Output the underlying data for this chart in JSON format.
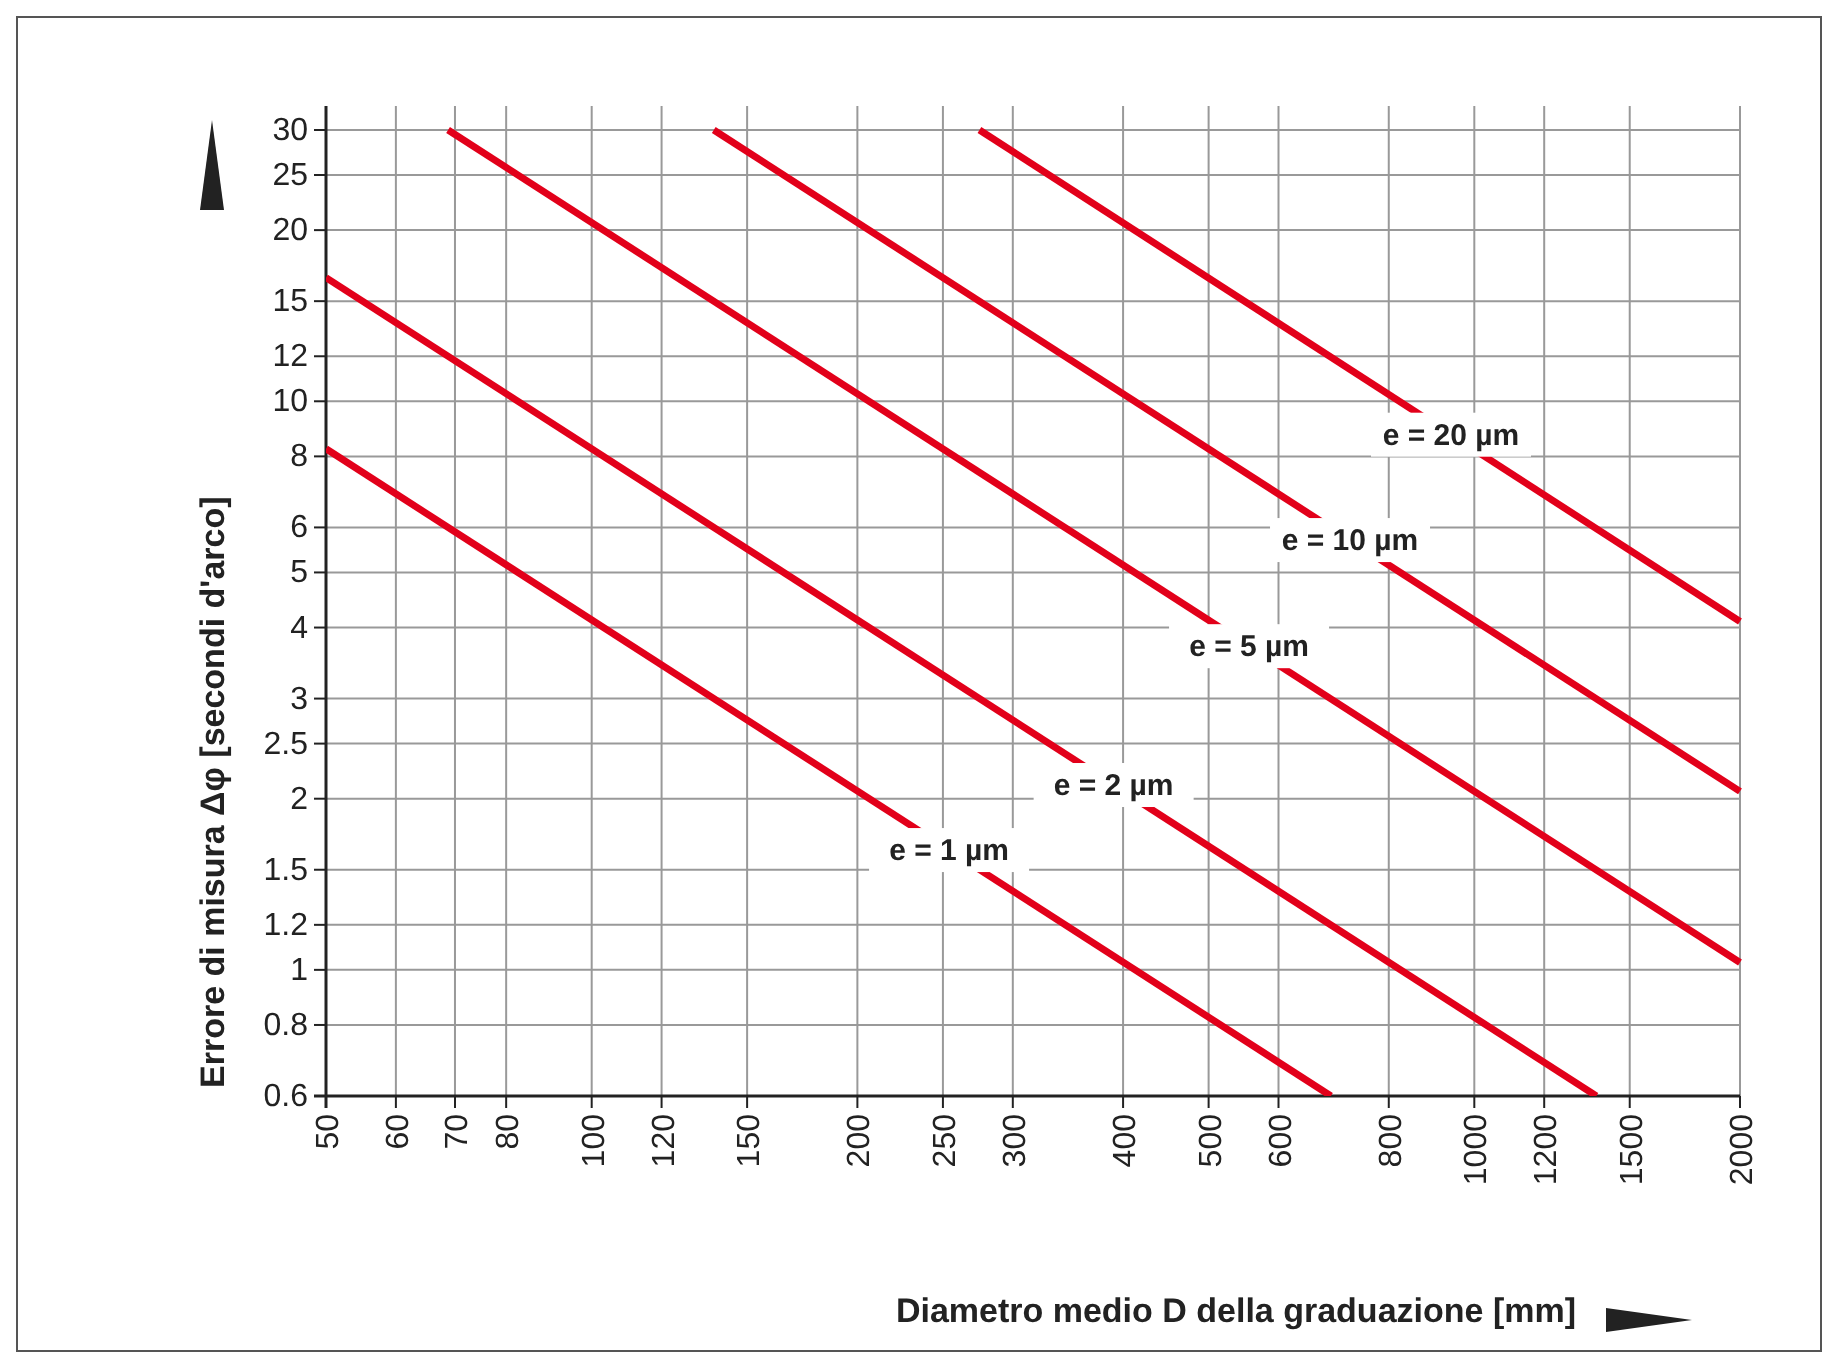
{
  "chart_data": {
    "type": "line",
    "xlabel": "Diametro medio D della graduazione [mm]",
    "ylabel": "Errore di misura Δφ [secondi d'arco]",
    "log": "xy",
    "grid": true,
    "line_style": "solid",
    "xlim": [
      50,
      2000
    ],
    "xticks": [
      50,
      60,
      70,
      80,
      100,
      120,
      150,
      200,
      250,
      300,
      400,
      500,
      600,
      800,
      1000,
      1200,
      1500,
      2000
    ],
    "ylim": [
      0.6,
      30
    ],
    "yticks": [
      0.6,
      0.8,
      1,
      1.2,
      1.5,
      2,
      2.5,
      3,
      4,
      5,
      6,
      8,
      10,
      12,
      15,
      20,
      25,
      30
    ],
    "series": [
      {
        "name": "e = 1 µm",
        "color": "#e2001a",
        "x": [
          50,
          688
        ],
        "values": [
          8.25,
          0.6
        ]
      },
      {
        "name": "e = 2 µm",
        "color": "#e2001a",
        "x": [
          50,
          1375
        ],
        "values": [
          16.5,
          0.6
        ]
      },
      {
        "name": "e = 5 µm",
        "color": "#e2001a",
        "x": [
          68.75,
          2000
        ],
        "values": [
          30,
          1.03
        ]
      },
      {
        "name": "e = 10 µm",
        "color": "#e2001a",
        "x": [
          137.5,
          2000
        ],
        "values": [
          30,
          2.06
        ]
      },
      {
        "name": "e = 20 µm",
        "color": "#e2001a",
        "x": [
          275,
          2000
        ],
        "values": [
          30,
          4.1
        ]
      }
    ]
  }
}
